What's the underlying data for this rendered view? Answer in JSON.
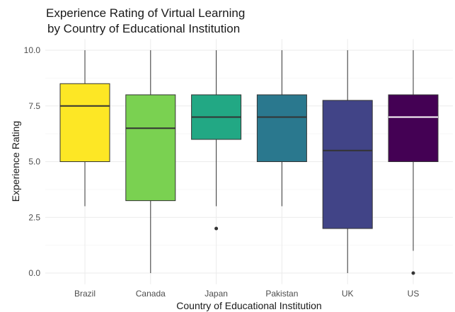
{
  "chart_data": {
    "type": "boxplot",
    "title_lines": [
      "Experience Rating of Virtual Learning",
      "by Country of Educational Institution"
    ],
    "xlabel": "Country of Educational Institution",
    "ylabel": "Experience Rating",
    "ylim": [
      -0.5,
      10.5
    ],
    "yticks": [
      0.0,
      2.5,
      5.0,
      7.5,
      10.0
    ],
    "ytick_labels": [
      "0.0",
      "2.5",
      "5.0",
      "7.5",
      "10.0"
    ],
    "grid": true,
    "legend": "none",
    "categories": [
      "Brazil",
      "Canada",
      "Japan",
      "Pakistan",
      "UK",
      "US"
    ],
    "boxes": [
      {
        "category": "Brazil",
        "whisker_low": 3,
        "q1": 5,
        "median": 7.5,
        "q3": 8.5,
        "whisker_high": 10,
        "outliers": [],
        "fill": "#fde725",
        "median_color": "#333333"
      },
      {
        "category": "Canada",
        "whisker_low": 0,
        "q1": 3.25,
        "median": 6.5,
        "q3": 8,
        "whisker_high": 10,
        "outliers": [],
        "fill": "#7ad151",
        "median_color": "#333333"
      },
      {
        "category": "Japan",
        "whisker_low": 3,
        "q1": 6,
        "median": 7,
        "q3": 8,
        "whisker_high": 10,
        "outliers": [
          2
        ],
        "fill": "#22a884",
        "median_color": "#333333"
      },
      {
        "category": "Pakistan",
        "whisker_low": 3,
        "q1": 5,
        "median": 7,
        "q3": 8,
        "whisker_high": 10,
        "outliers": [],
        "fill": "#2a788e",
        "median_color": "#333333"
      },
      {
        "category": "UK",
        "whisker_low": 0,
        "q1": 2,
        "median": 5.5,
        "q3": 7.75,
        "whisker_high": 10,
        "outliers": [],
        "fill": "#414487",
        "median_color": "#333333"
      },
      {
        "category": "US",
        "whisker_low": 1,
        "q1": 5,
        "median": 7,
        "q3": 8,
        "whisker_high": 10,
        "outliers": [
          0
        ],
        "fill": "#440154",
        "median_color": "#ffffff"
      }
    ]
  }
}
